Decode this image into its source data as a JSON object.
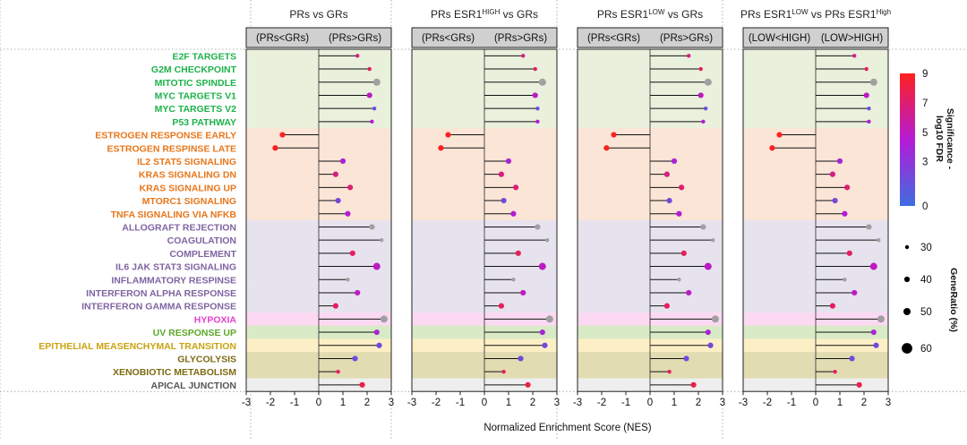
{
  "chart_data": {
    "type": "lollipop",
    "xlabel": "Normalized Enrichment Score (NES)",
    "xlim": [
      -3,
      3
    ],
    "xticks": [
      "-3",
      "-2",
      "-1",
      "0",
      "1",
      "2",
      "3"
    ],
    "panels": [
      {
        "title": "PRs vs GRs",
        "title_sup": "",
        "title_rest": "",
        "header_left": "(PRs<GRs)",
        "header_right": "(PRs>GRs)"
      },
      {
        "title": "PRs ESR1",
        "title_sup": "HIGH",
        "title_rest": " vs GRs",
        "header_left": "(PRs<GRs)",
        "header_right": "(PRs>GRs)"
      },
      {
        "title": "PRs ESR1",
        "title_sup": "LOW",
        "title_rest": " vs GRs",
        "header_left": "(PRs<GRs)",
        "header_right": "(PRs>GRs)"
      },
      {
        "title": "PRs ESR1",
        "title_sup": "LOW",
        "title_rest": " vs PRs ESR1",
        "title_sup2": "High",
        "header_left": "(LOW<HIGH)",
        "header_right": "(LOW>HIGH)"
      }
    ],
    "pathways": [
      {
        "name": "E2F TARGETS",
        "color": "#1db24a",
        "band": "#e9f0dc"
      },
      {
        "name": "G2M CHECKPOINT",
        "color": "#1db24a",
        "band": "#e9f0dc"
      },
      {
        "name": "MITOTIC SPINDLE",
        "color": "#1db24a",
        "band": "#e9f0dc"
      },
      {
        "name": "MYC TARGETS V1",
        "color": "#1db24a",
        "band": "#e9f0dc"
      },
      {
        "name": "MYC TARGETS V2",
        "color": "#1db24a",
        "band": "#e9f0dc"
      },
      {
        "name": "P53 PATHWAY",
        "color": "#1db24a",
        "band": "#e9f0dc"
      },
      {
        "name": "ESTROGEN RESPONSE EARLY",
        "color": "#e8761a",
        "band": "#fbe5d6"
      },
      {
        "name": "ESTROGEN RESPINSE LATE",
        "color": "#e8761a",
        "band": "#fbe5d6"
      },
      {
        "name": "IL2 STAT5 SIGNALING",
        "color": "#e8761a",
        "band": "#fbe5d6"
      },
      {
        "name": "KRAS SIGNALING DN",
        "color": "#e8761a",
        "band": "#fbe5d6"
      },
      {
        "name": "KRAS SIGNALING UP",
        "color": "#e8761a",
        "band": "#fbe5d6"
      },
      {
        "name": "MTORC1 SIGNALING",
        "color": "#e8761a",
        "band": "#fbe5d6"
      },
      {
        "name": "TNFA SIGNALING VIA NFKB",
        "color": "#e8761a",
        "band": "#fbe5d6"
      },
      {
        "name": "ALLOGRAFT REJECTION",
        "color": "#8064a2",
        "band": "#e6e3ee"
      },
      {
        "name": "COAGULATION",
        "color": "#8064a2",
        "band": "#e6e3ee"
      },
      {
        "name": "COMPLEMENT",
        "color": "#8064a2",
        "band": "#e6e3ee"
      },
      {
        "name": "IL6 JAK STAT3 SIGNALING",
        "color": "#8064a2",
        "band": "#e6e3ee"
      },
      {
        "name": "INFLAMMATORY RESPINSE",
        "color": "#8064a2",
        "band": "#e6e3ee"
      },
      {
        "name": "INTERFERON ALPHA RESPONSE",
        "color": "#8064a2",
        "band": "#e6e3ee"
      },
      {
        "name": "INTERFERON GAMMA RESPONSE",
        "color": "#8064a2",
        "band": "#e6e3ee"
      },
      {
        "name": "HYPOXIA",
        "color": "#e83fd0",
        "band": "#fbd9f2"
      },
      {
        "name": "UV RESPONSE UP",
        "color": "#5ea82a",
        "band": "#d9ebc6"
      },
      {
        "name": "EPITHELIAL MEASENCHYMAL TRANSITION",
        "color": "#c9a411",
        "band": "#fcefc6"
      },
      {
        "name": "GLYCOLYSIS",
        "color": "#7d6a12",
        "band": "#e2dcb2"
      },
      {
        "name": "XENOBIOTIC METABOLISM",
        "color": "#7d6a12",
        "band": "#e2dcb2"
      },
      {
        "name": "APICAL JUNCTION",
        "color": "#555555",
        "band": "#eeeeee"
      }
    ],
    "nes": [
      [
        1.6,
        2.1,
        2.4,
        2.1,
        2.3,
        2.2,
        -1.5,
        -1.8,
        1.0,
        0.7,
        1.3,
        0.8,
        1.2,
        2.2,
        2.6,
        1.4,
        2.4,
        1.2,
        1.6,
        0.7,
        2.7,
        2.4,
        2.5,
        1.5,
        0.8,
        1.8
      ],
      [
        1.6,
        2.1,
        2.4,
        2.1,
        2.2,
        2.2,
        -1.5,
        -1.8,
        1.0,
        0.7,
        1.3,
        0.8,
        1.2,
        2.2,
        2.6,
        1.4,
        2.4,
        1.2,
        1.6,
        0.7,
        2.7,
        2.4,
        2.5,
        1.5,
        0.8,
        1.8
      ],
      [
        1.6,
        2.1,
        2.4,
        2.1,
        2.3,
        2.2,
        -1.5,
        -1.8,
        1.0,
        0.7,
        1.3,
        0.8,
        1.2,
        2.2,
        2.6,
        1.4,
        2.4,
        1.2,
        1.6,
        0.7,
        2.7,
        2.4,
        2.5,
        1.5,
        0.8,
        1.8
      ],
      [
        1.6,
        2.1,
        2.4,
        2.1,
        2.2,
        2.2,
        -1.5,
        -1.8,
        1.0,
        0.7,
        1.3,
        0.8,
        1.2,
        2.2,
        2.6,
        1.4,
        2.4,
        1.2,
        1.6,
        0.7,
        2.7,
        2.4,
        2.5,
        1.5,
        0.8,
        1.8
      ]
    ],
    "significance": [
      6.5,
      7.5,
      null,
      5,
      1.5,
      4.5,
      9,
      9,
      4,
      6.5,
      7,
      2,
      4.5,
      null,
      null,
      7.5,
      5,
      null,
      5,
      7.5,
      null,
      4,
      2,
      2,
      7.5,
      8
    ],
    "gene_ratio": [
      30,
      30,
      50,
      40,
      30,
      30,
      40,
      40,
      40,
      40,
      40,
      40,
      40,
      40,
      30,
      40,
      50,
      30,
      40,
      40,
      50,
      40,
      40,
      40,
      30,
      40
    ],
    "color_legend": {
      "title": "Significance -\nlog10 FDR",
      "ticks": [
        "9",
        "7",
        "5",
        "3",
        "0"
      ],
      "range": [
        0,
        9
      ],
      "low_color": "#3f6ee0",
      "mid_color": "#b51bd6",
      "high_color": "#ff2020"
    },
    "size_legend": {
      "title": "GeneRatio (%)",
      "values": [
        "30",
        "40",
        "50",
        "60"
      ]
    },
    "gray_color": "#a0a0a0"
  }
}
